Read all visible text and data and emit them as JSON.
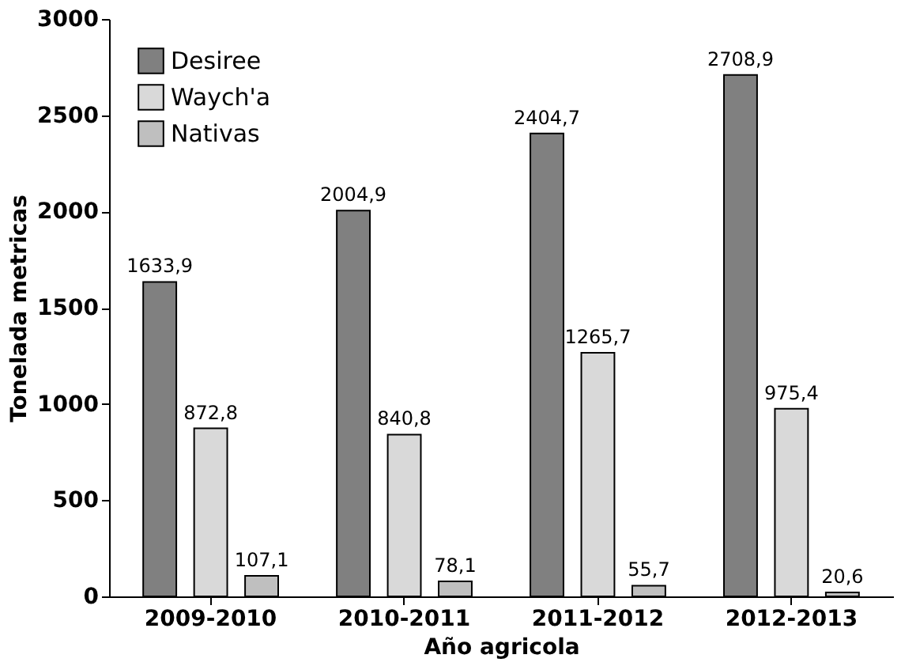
{
  "chart_data": {
    "type": "bar",
    "xlabel": "Año agricola",
    "ylabel": "Tonelada metricas",
    "categories": [
      "2009-2010",
      "2010-2011",
      "2011-2012",
      "2012-2013"
    ],
    "series": [
      {
        "name": "Desiree",
        "color": "#808080",
        "values": [
          1633.9,
          2004.9,
          2404.7,
          2708.9
        ],
        "value_labels": [
          "1633,9",
          "2004,9",
          "2404,7",
          "2708,9"
        ]
      },
      {
        "name": "Waych'a",
        "color": "#d9d9d9",
        "values": [
          872.8,
          840.8,
          1265.7,
          975.4
        ],
        "value_labels": [
          "872,8",
          "840,8",
          "1265,7",
          "975,4"
        ]
      },
      {
        "name": "Nativas",
        "color": "#bfbfbf",
        "values": [
          107.1,
          78.1,
          55.7,
          20.6
        ],
        "value_labels": [
          "107,1",
          "78,1",
          "55,7",
          "20,6"
        ]
      }
    ],
    "ylim": [
      0,
      3000
    ],
    "yticks": [
      0,
      500,
      1000,
      1500,
      2000,
      2500,
      3000
    ],
    "grid": false,
    "legend": "top left"
  }
}
